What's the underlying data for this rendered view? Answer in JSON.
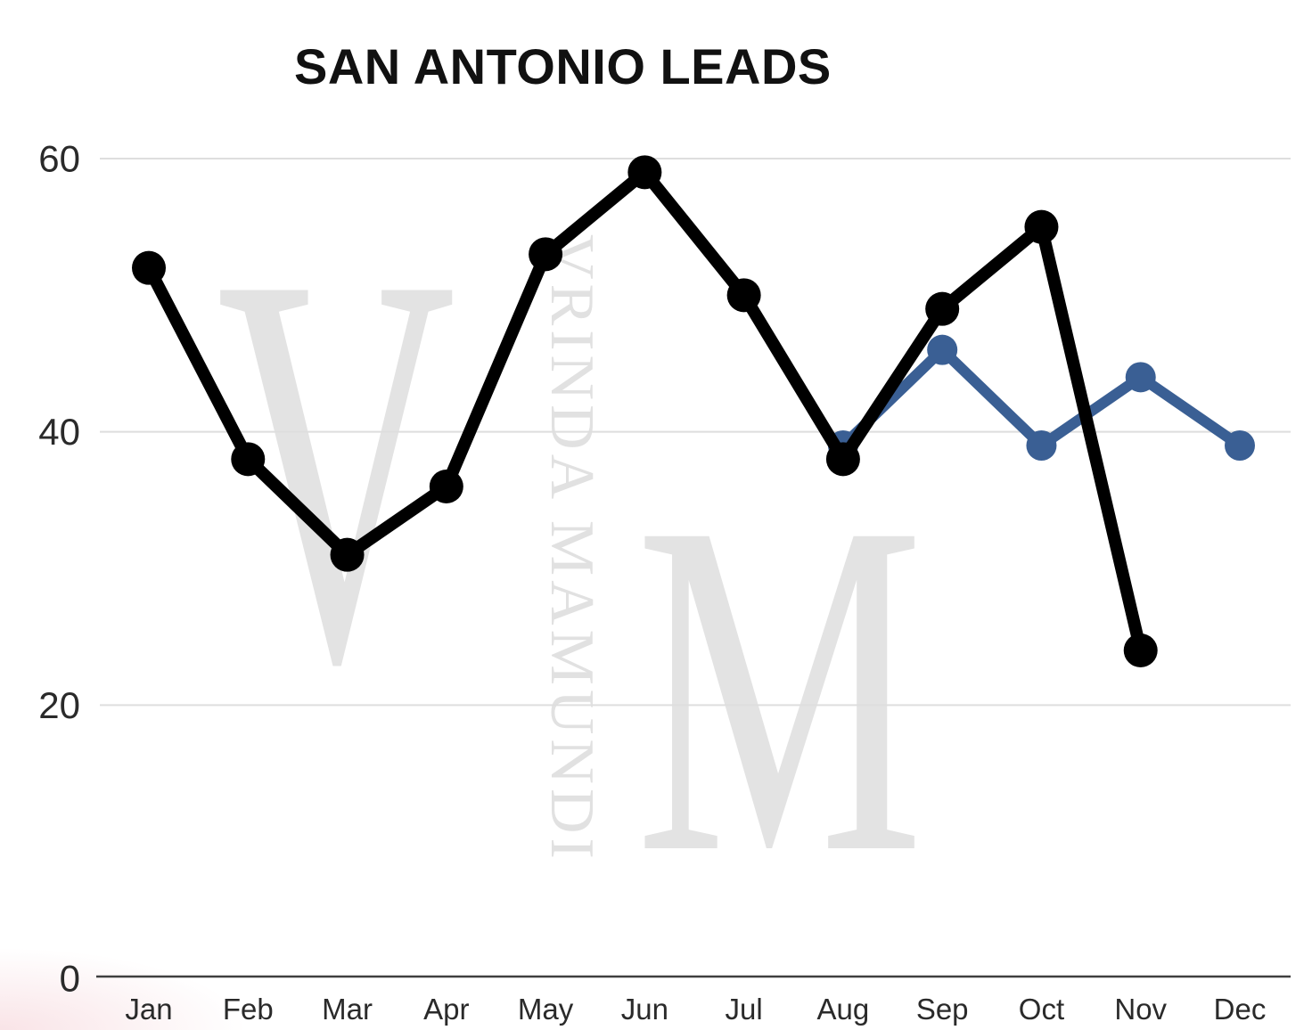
{
  "title": {
    "text": "SAN ANTONIO LEADS"
  },
  "watermark": {
    "letter_v": "V",
    "letter_m": "M",
    "vertical_text": "VRINDA MAMUNDI",
    "color": "#e3e3e3",
    "vertical_text_color": "#e1e1e1"
  },
  "chart_data": {
    "type": "line",
    "title": "SAN ANTONIO LEADS",
    "categories": [
      "Jan",
      "Feb",
      "Mar",
      "Apr",
      "May",
      "Jun",
      "Jul",
      "Aug",
      "Sep",
      "Oct",
      "Nov",
      "Dec"
    ],
    "y_ticks": [
      0,
      20,
      40,
      60
    ],
    "ylim": [
      0,
      60
    ],
    "grid": true,
    "legend": "none",
    "series": [
      {
        "id": "series-blue",
        "color": "#3a5f94",
        "line_width": 12,
        "point_radius": 17,
        "values": [
          null,
          null,
          null,
          null,
          null,
          null,
          null,
          39,
          46,
          39,
          44,
          39
        ]
      },
      {
        "id": "series-black",
        "color": "#000000",
        "line_width": 14,
        "point_radius": 19,
        "values": [
          52,
          38,
          31,
          36,
          53,
          59,
          50,
          38,
          49,
          55,
          24,
          null
        ]
      }
    ],
    "gridline_color": "#dedede",
    "axis_color": "#3f3f3f",
    "label_color": "#2a2a2a"
  }
}
